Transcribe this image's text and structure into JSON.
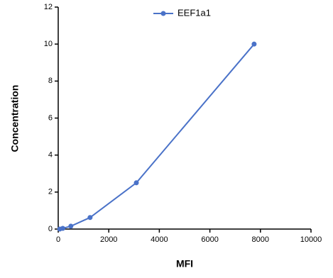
{
  "chart_data": {
    "type": "line",
    "x_label": "MFI",
    "y_label": "Concentration",
    "x": [
      60,
      180,
      500,
      1260,
      3090,
      7750
    ],
    "series": [
      {
        "name": "EEF1a1",
        "color": "#4a72c8",
        "values": [
          0,
          0.039,
          0.156,
          0.625,
          2.5,
          10
        ]
      }
    ],
    "xlim": [
      0,
      10000
    ],
    "xticks": [
      0,
      2000,
      4000,
      6000,
      8000,
      10000
    ],
    "ylim": [
      0,
      12
    ],
    "yticks": [
      0,
      2,
      4,
      6,
      8,
      10,
      12
    ],
    "legend": "top"
  }
}
